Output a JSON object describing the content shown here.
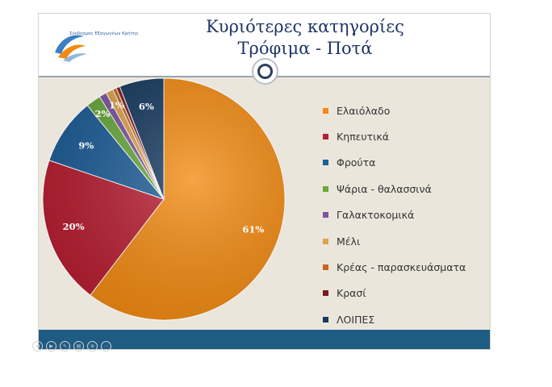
{
  "slide": {
    "title_line1": "Κυριότερες κατηγορίες",
    "title_line2": "Τρόφιμα - Ποτά",
    "logo_text": "Σύνδεσμος Εξαγωγέων Κρήτης"
  },
  "chart_data": {
    "type": "pie",
    "title": "Κυριότερες κατηγορίες Τρόφιμα - Ποτά",
    "categories": [
      "Ελαιόλαδο",
      "Κηπευτικά",
      "Φρούτα",
      "Ψάρια - θαλασσινά",
      "Γαλακτοκομικά",
      "Μέλι",
      "Κρέας - παρασκευάσματα",
      "Κρασί",
      "ΛΟΙΠΕΣ"
    ],
    "values": [
      61,
      20,
      9,
      2,
      1,
      1,
      0.5,
      0.5,
      6
    ],
    "data_labels": [
      "61%",
      "20%",
      "9%",
      "2%",
      "",
      "1%",
      "",
      "",
      "6%"
    ],
    "colors": [
      "#f28a12",
      "#b81f33",
      "#1e5e98",
      "#69a83b",
      "#7d55a0",
      "#dea24a",
      "#c8661f",
      "#7b1a22",
      "#16395f"
    ],
    "legend_position": "right"
  },
  "controls": [
    "◀",
    "▶",
    "✎",
    "▤",
    "⊕",
    "⋯"
  ]
}
